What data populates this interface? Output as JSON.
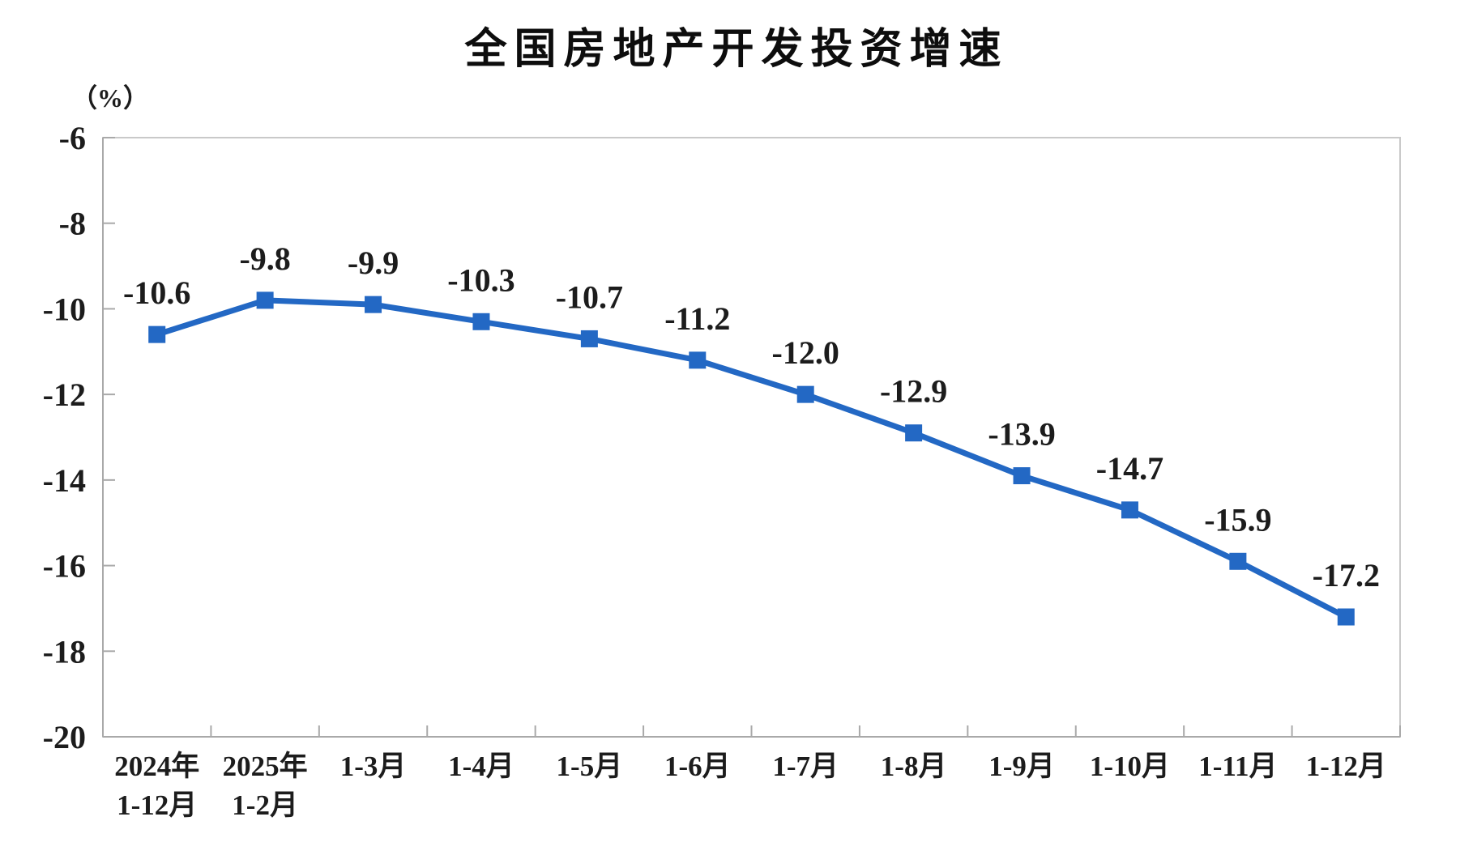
{
  "page": {
    "background": "#ffffff"
  },
  "chart_data": {
    "type": "line",
    "title": "全国房地产开发投资增速",
    "unit_label": "（%）",
    "categories": [
      "2024年\n1-12月",
      "2025年\n1-2月",
      "1-3月",
      "1-4月",
      "1-5月",
      "1-6月",
      "1-7月",
      "1-8月",
      "1-9月",
      "1-10月",
      "1-11月",
      "1-12月"
    ],
    "values": [
      -10.6,
      -9.8,
      -9.9,
      -10.3,
      -10.7,
      -11.2,
      -12.0,
      -12.9,
      -13.9,
      -14.7,
      -15.9,
      -17.2
    ],
    "data_labels": [
      "-10.6",
      "-9.8",
      "-9.9",
      "-10.3",
      "-10.7",
      "-11.2",
      "-12.0",
      "-12.9",
      "-13.9",
      "-14.7",
      "-15.9",
      "-17.2"
    ],
    "series_name": "全国房地产开发投资增速",
    "ylim": [
      -20,
      -6
    ],
    "y_tick_values": [
      -6,
      -8,
      -10,
      -12,
      -14,
      -16,
      -18,
      -20
    ],
    "y_tick_labels": [
      "-6",
      "-8",
      "-10",
      "-12",
      "-14",
      "-16",
      "-18",
      "-20"
    ],
    "grid": false,
    "legend_position": "none",
    "marker": "square",
    "colors": {
      "line": "#2368C4",
      "marker": "#2368C4",
      "axis": "#A9A9A9",
      "plot_border": "#C9C9C9",
      "label_text": "#1c1c1c",
      "title_text": "#0d0d0d"
    }
  }
}
